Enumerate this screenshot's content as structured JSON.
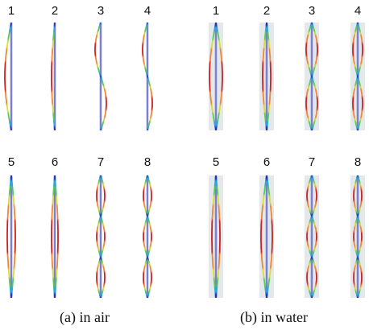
{
  "panels": [
    {
      "caption": "(a) in air",
      "modes": [
        "1",
        "2",
        "3",
        "4",
        "5",
        "6",
        "7",
        "8"
      ]
    },
    {
      "caption": "(b) in water",
      "modes": [
        "1",
        "2",
        "3",
        "4",
        "5",
        "6",
        "7",
        "8"
      ]
    }
  ]
}
